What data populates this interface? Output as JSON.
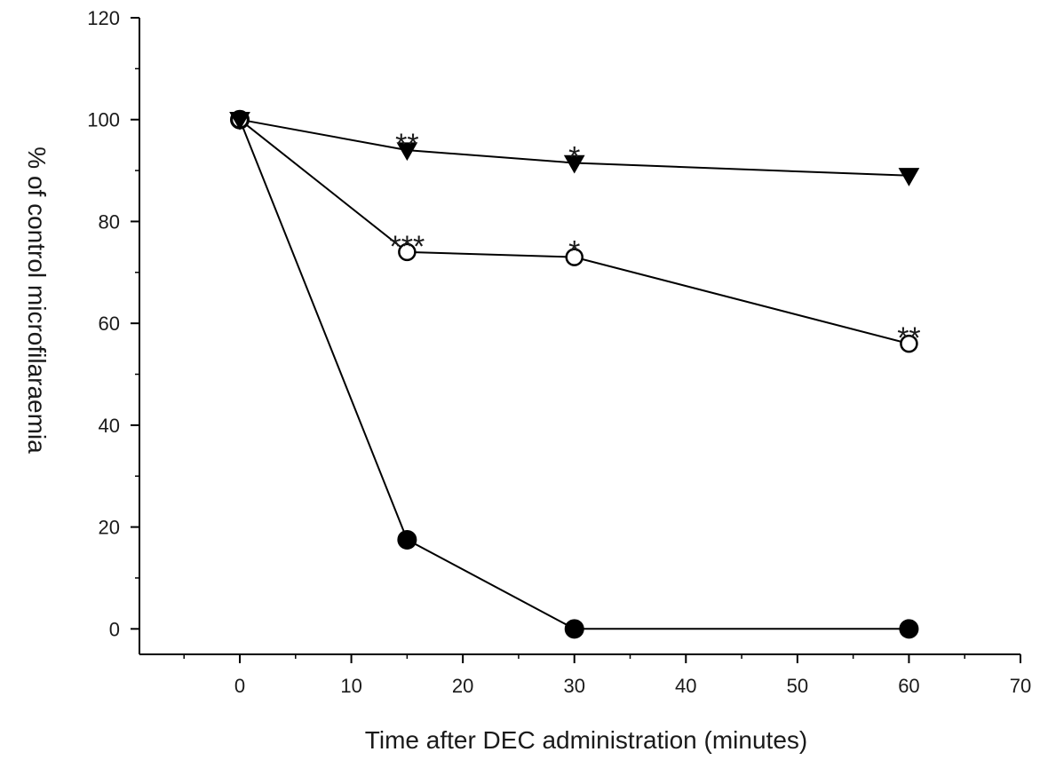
{
  "chart_data": {
    "type": "line",
    "xlabel": "Time after DEC administration (minutes)",
    "ylabel": "% of control microfilaraemia",
    "xlim": [
      -9,
      70
    ],
    "ylim": [
      -5,
      120
    ],
    "x_ticks": [
      0,
      10,
      20,
      30,
      40,
      50,
      60,
      70
    ],
    "y_ticks": [
      0,
      20,
      40,
      60,
      80,
      100,
      120
    ],
    "grid": false,
    "series": [
      {
        "marker": "filled-triangle-down",
        "color": "#000000",
        "x": [
          0,
          15,
          30,
          60
        ],
        "y": [
          100,
          94,
          91.5,
          89
        ]
      },
      {
        "marker": "open-circle",
        "color": "#000000",
        "x": [
          0,
          15,
          30,
          60
        ],
        "y": [
          100,
          74,
          73,
          56
        ]
      },
      {
        "marker": "filled-circle",
        "color": "#000000",
        "x": [
          0,
          15,
          30,
          60
        ],
        "y": [
          100,
          17.5,
          0,
          0
        ]
      }
    ],
    "annotations": [
      {
        "text": "**",
        "x": 15,
        "y": 94
      },
      {
        "text": "*",
        "x": 30,
        "y": 91.5
      },
      {
        "text": "***",
        "x": 15,
        "y": 74
      },
      {
        "text": "*",
        "x": 30,
        "y": 73
      },
      {
        "text": "**",
        "x": 60,
        "y": 56
      }
    ]
  }
}
